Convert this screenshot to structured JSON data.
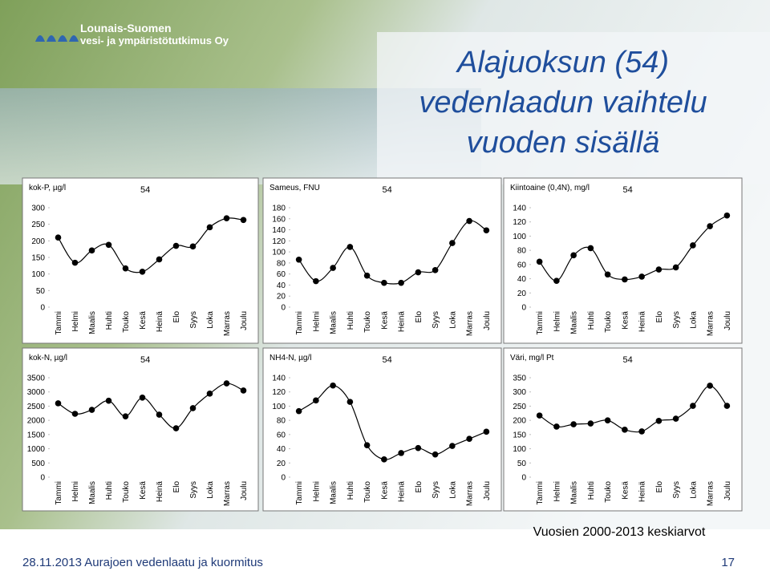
{
  "header": {
    "logo_line1": "Lounais-Suomen",
    "logo_line2": "vesi- ja ympäristötutkimus Oy",
    "title_lines": [
      "Alajuoksun (54)",
      "vedenlaadun vaihtelu",
      "vuoden sisällä"
    ]
  },
  "note": "Vuosien 2000-2013 keskiarvot",
  "footer": {
    "text": "28.11.2013 Aurajoen vedenlaatu ja kuormitus",
    "page": "17"
  },
  "chart_data": [
    {
      "type": "line",
      "title": "kok-P, µg/l",
      "categories": [
        "Tammi",
        "Helmi",
        "Maalis",
        "Huhti",
        "Touko",
        "Kesä",
        "Heinä",
        "Elo",
        "Syys",
        "Loka",
        "Marras",
        "Joulu"
      ],
      "series": [
        {
          "name": "54",
          "color": "#000000",
          "values": [
            210,
            134,
            171,
            188,
            117,
            107,
            144,
            185,
            183,
            241,
            268,
            263
          ]
        }
      ],
      "ylim": [
        0,
        300
      ],
      "yticks": [
        0,
        50,
        100,
        150,
        200,
        250,
        300
      ]
    },
    {
      "type": "line",
      "title": "Sameus, FNU",
      "categories": [
        "Tammi",
        "Helmi",
        "Maalis",
        "Huhti",
        "Touko",
        "Kesä",
        "Heinä",
        "Elo",
        "Syys",
        "Loka",
        "Marras",
        "Joulu"
      ],
      "series": [
        {
          "name": "54",
          "color": "#000000",
          "values": [
            86,
            47,
            71,
            109,
            57,
            44,
            44,
            63,
            67,
            116,
            156,
            139
          ]
        }
      ],
      "ylim": [
        0,
        180
      ],
      "yticks": [
        0,
        20,
        40,
        60,
        80,
        100,
        120,
        140,
        160,
        180
      ]
    },
    {
      "type": "line",
      "title": "Kiintoaine (0,4N), mg/l",
      "categories": [
        "Tammi",
        "Helmi",
        "Maalis",
        "Huhti",
        "Touko",
        "Kesä",
        "Heinä",
        "Elo",
        "Syys",
        "Loka",
        "Marras",
        "Joulu"
      ],
      "series": [
        {
          "name": "54",
          "color": "#000000",
          "values": [
            64,
            37,
            73,
            83,
            46,
            39,
            43,
            53,
            56,
            87,
            114,
            129
          ]
        }
      ],
      "ylim": [
        0,
        140
      ],
      "yticks": [
        0,
        20,
        40,
        60,
        80,
        100,
        120,
        140
      ]
    },
    {
      "type": "line",
      "title": "kok-N, µg/l",
      "categories": [
        "Tammi",
        "Helmi",
        "Maalis",
        "Huhti",
        "Touko",
        "Kesä",
        "Heinä",
        "Elo",
        "Syys",
        "Loka",
        "Marras",
        "Joulu"
      ],
      "series": [
        {
          "name": "54",
          "color": "#000000",
          "values": [
            2600,
            2230,
            2370,
            2690,
            2140,
            2800,
            2200,
            1720,
            2430,
            2940,
            3300,
            3050
          ]
        }
      ],
      "ylim": [
        0,
        3500
      ],
      "yticks": [
        0,
        500,
        1000,
        1500,
        2000,
        2500,
        3000,
        3500
      ]
    },
    {
      "type": "line",
      "title": "NH4-N, µg/l",
      "categories": [
        "Tammi",
        "Helmi",
        "Maalis",
        "Huhti",
        "Touko",
        "Kesä",
        "Heinä",
        "Elo",
        "Syys",
        "Loka",
        "Marras",
        "Joulu"
      ],
      "series": [
        {
          "name": "54",
          "color": "#000000",
          "values": [
            93,
            108,
            129,
            106,
            45,
            25,
            34,
            41,
            32,
            44,
            54,
            64
          ]
        }
      ],
      "ylim": [
        0,
        140
      ],
      "yticks": [
        0,
        20,
        40,
        60,
        80,
        100,
        120,
        140
      ]
    },
    {
      "type": "line",
      "title": "Väri, mg/l Pt",
      "categories": [
        "Tammi",
        "Helmi",
        "Maalis",
        "Huhti",
        "Touko",
        "Kesä",
        "Heinä",
        "Elo",
        "Syys",
        "Loka",
        "Marras",
        "Joulu"
      ],
      "series": [
        {
          "name": "54",
          "color": "#000000",
          "values": [
            217,
            178,
            186,
            189,
            200,
            167,
            161,
            198,
            206,
            251,
            322,
            251
          ]
        }
      ],
      "ylim": [
        0,
        350
      ],
      "yticks": [
        0,
        50,
        100,
        150,
        200,
        250,
        300,
        350
      ]
    }
  ]
}
